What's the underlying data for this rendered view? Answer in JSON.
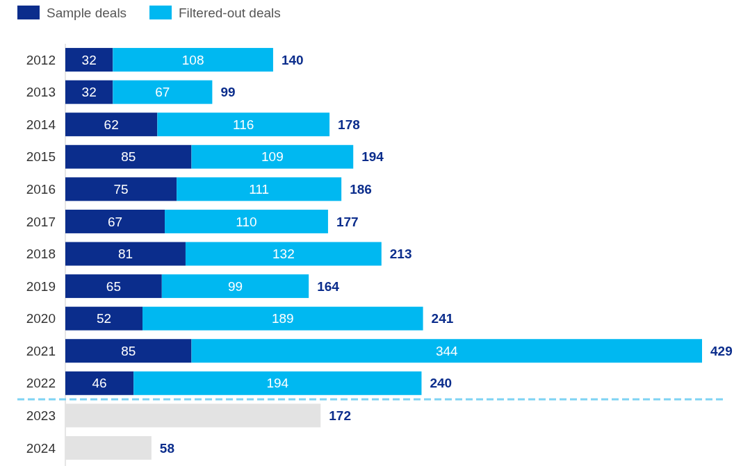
{
  "chart_data": {
    "type": "bar",
    "orientation": "horizontal",
    "stacked": true,
    "legend": "top left",
    "categories": [
      "2012",
      "2013",
      "2014",
      "2015",
      "2016",
      "2017",
      "2018",
      "2019",
      "2020",
      "2021",
      "2022",
      "2023",
      "2024"
    ],
    "series": [
      {
        "name": "Sample deals",
        "color": "#0b2d8c",
        "values": [
          32,
          32,
          62,
          85,
          75,
          67,
          81,
          65,
          52,
          85,
          46,
          null,
          null
        ],
        "value_labels": [
          "32",
          "32",
          "62",
          "85",
          "75",
          "67",
          "81",
          "65",
          "52",
          "85",
          "46",
          null,
          null
        ]
      },
      {
        "name": "Filtered-out deals",
        "color": "#00b8f1",
        "values": [
          108,
          67,
          116,
          109,
          111,
          110,
          132,
          99,
          189,
          344,
          194,
          null,
          null
        ],
        "value_labels": [
          "108",
          "67",
          "116",
          "109",
          "111",
          "110",
          "132",
          "99",
          "189",
          "344",
          "194",
          null,
          null
        ]
      },
      {
        "color": "#e3e3e3",
        "values": [
          null,
          null,
          null,
          null,
          null,
          null,
          null,
          null,
          null,
          null,
          null,
          172,
          58
        ]
      }
    ],
    "ref_lines": [
      {
        "axis": "y",
        "value": "2022",
        "color": "#7fd3f3",
        "line_style": "dashed"
      }
    ],
    "totals": [
      "140",
      "99",
      "178",
      "194",
      "186",
      "177",
      "213",
      "164",
      "241",
      "429",
      "240",
      "172",
      "58"
    ]
  }
}
